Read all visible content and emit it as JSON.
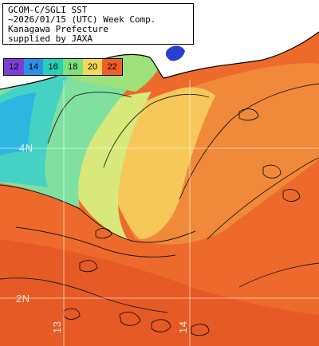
{
  "title_lines": [
    "GCOM-C/SGLI SST",
    "~2026/01/15 (UTC) Week Comp.",
    "Kanagawa Prefecture",
    "supplied by JAXA"
  ],
  "legend": [
    {
      "label": "12",
      "color": "#7b3fd6"
    },
    {
      "label": "14",
      "color": "#2f8fe8"
    },
    {
      "label": "16",
      "color": "#27d0b8"
    },
    {
      "label": "18",
      "color": "#7de07a"
    },
    {
      "label": "20",
      "color": "#f5d85a"
    },
    {
      "label": "22",
      "color": "#f25c25"
    }
  ],
  "grid_labels": {
    "lat_upper": "4N",
    "lat_lower": "2N",
    "lon_left": "13",
    "lon_right": "14"
  },
  "colors": {
    "land": "#ffffff",
    "coastline": "#000000",
    "gridline": "#ffffff",
    "sea_warm": "#ee6a2c",
    "sea_cool": "#6fdca0"
  }
}
